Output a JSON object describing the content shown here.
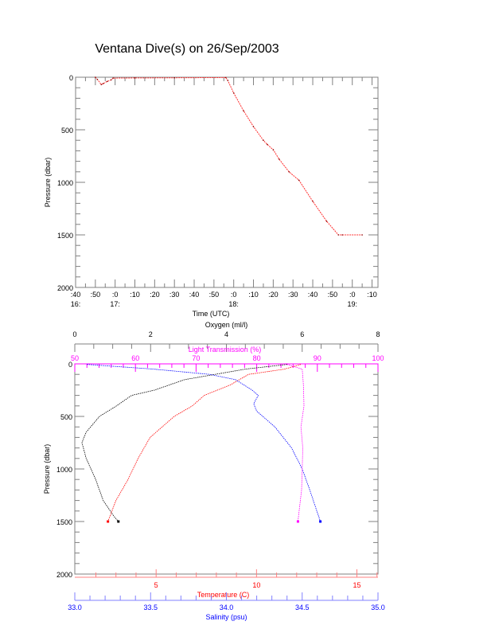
{
  "title": "Ventana Dive(s) on 26/Sep/2003",
  "colors": {
    "axis": "#808080",
    "oxygen": "#000000",
    "light": "#ff00ff",
    "temperature": "#ff0000",
    "salinity": "#0000ff",
    "track": "#ff3030"
  },
  "chart_data": [
    {
      "type": "line",
      "name": "pressure-vs-time",
      "xlabel": "Time (UTC)",
      "ylabel": "Pressure (dbar)",
      "xlim_minutes_after_16_40": [
        0,
        153
      ],
      "ylim": [
        2000,
        0
      ],
      "yticks": [
        0,
        500,
        1000,
        1500,
        2000
      ],
      "xticks": [
        {
          "m": 0,
          "label": ":40",
          "hour": "16:"
        },
        {
          "m": 10,
          "label": ":50"
        },
        {
          "m": 20,
          "label": ":0",
          "hour": "17:"
        },
        {
          "m": 30,
          "label": ":10"
        },
        {
          "m": 40,
          "label": ":20"
        },
        {
          "m": 50,
          "label": ":30"
        },
        {
          "m": 60,
          "label": ":40"
        },
        {
          "m": 70,
          "label": ":50"
        },
        {
          "m": 80,
          "label": ":0",
          "hour": "18:"
        },
        {
          "m": 90,
          "label": ":10"
        },
        {
          "m": 100,
          "label": ":20"
        },
        {
          "m": 110,
          "label": ":30"
        },
        {
          "m": 120,
          "label": ":40"
        },
        {
          "m": 130,
          "label": ":50"
        },
        {
          "m": 140,
          "label": ":0",
          "hour": "19:"
        },
        {
          "m": 150,
          "label": ":10"
        }
      ],
      "x": [
        10,
        11,
        13,
        14,
        16,
        18,
        19,
        30,
        50,
        76,
        77,
        80,
        85,
        90,
        95,
        97,
        100,
        103,
        108,
        113,
        120,
        127,
        133,
        135,
        145
      ],
      "y": [
        0,
        20,
        70,
        60,
        40,
        25,
        8,
        7,
        5,
        3,
        30,
        150,
        320,
        470,
        600,
        640,
        690,
        780,
        900,
        980,
        1180,
        1370,
        1500,
        1500,
        1500
      ]
    },
    {
      "type": "line",
      "name": "profiles",
      "ylabel": "Pressure (dbar)",
      "ylim": [
        2000,
        0
      ],
      "yticks": [
        0,
        500,
        1000,
        1500,
        2000
      ],
      "axes": {
        "oxygen": {
          "label": "Oxygen (ml/l)",
          "range": [
            0,
            8
          ],
          "ticks": [
            0,
            2,
            4,
            6,
            8
          ],
          "position": "top"
        },
        "light": {
          "label": "Light Transmission (%)",
          "range": [
            50,
            100
          ],
          "ticks": [
            50,
            60,
            70,
            80,
            90,
            100
          ],
          "position": "top"
        },
        "temperature": {
          "label": "Temperature (C)",
          "range": [
            0.95,
            16.05
          ],
          "ticks": [
            5,
            10,
            15
          ],
          "position": "bottom"
        },
        "salinity": {
          "label": "Salinity (psu)",
          "range": [
            33.0,
            35.0
          ],
          "ticks": [
            "33.0",
            "33.5",
            "34.0",
            "34.5",
            "35.0"
          ],
          "position": "bottom"
        }
      },
      "series": [
        {
          "name": "Oxygen",
          "axis": "oxygen",
          "pressure": [
            5,
            50,
            150,
            250,
            300,
            400,
            500,
            650,
            750,
            900,
            1100,
            1300,
            1450,
            1500
          ],
          "values": [
            5.6,
            4.5,
            2.9,
            2.1,
            1.5,
            1.1,
            0.65,
            0.3,
            0.19,
            0.3,
            0.55,
            0.75,
            1.03,
            1.15
          ]
        },
        {
          "name": "Temperature",
          "axis": "temperature",
          "pressure": [
            5,
            50,
            100,
            200,
            300,
            400,
            500,
            700,
            900,
            1100,
            1300,
            1500
          ],
          "values": [
            12.2,
            11.4,
            9.6,
            8.7,
            7.4,
            6.8,
            5.9,
            4.7,
            4.1,
            3.6,
            3.0,
            2.6
          ]
        },
        {
          "name": "Salinity",
          "axis": "salinity",
          "pressure": [
            5,
            50,
            100,
            150,
            250,
            300,
            380,
            450,
            600,
            800,
            1000,
            1200,
            1500
          ],
          "values": [
            33.08,
            33.52,
            33.89,
            34.06,
            34.17,
            34.21,
            34.18,
            34.2,
            34.32,
            34.43,
            34.5,
            34.55,
            34.62
          ]
        },
        {
          "name": "Light Transmission",
          "axis": "light",
          "pressure": [
            5,
            50,
            200,
            400,
            600,
            800,
            1000,
            1200,
            1400,
            1500
          ],
          "values": [
            85,
            87.5,
            87.7,
            87.8,
            87.3,
            87.6,
            87.5,
            87.4,
            87.0,
            86.8
          ]
        }
      ]
    }
  ]
}
